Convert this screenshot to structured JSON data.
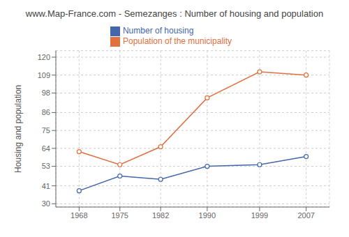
{
  "chart_data": {
    "type": "line",
    "title": "www.Map-France.com - Semezanges : Number of housing and population",
    "ylabel": "Housing and population",
    "x": [
      1968,
      1975,
      1982,
      1990,
      1999,
      2007
    ],
    "series": [
      {
        "name": "Number of housing",
        "color": "#4466aa",
        "values": [
          38,
          47,
          45,
          53,
          54,
          59
        ],
        "marker": "circle"
      },
      {
        "name": "Population of the municipality",
        "color": "#e07040",
        "values": [
          62,
          54,
          65,
          95,
          111,
          109
        ],
        "marker": "circle"
      }
    ],
    "xlim": [
      1964,
      2011
    ],
    "xticks": [
      1968,
      1975,
      1982,
      1990,
      1999,
      2007
    ],
    "ylim": [
      28,
      124
    ],
    "yticks": [
      30,
      41,
      53,
      64,
      75,
      86,
      98,
      109,
      120
    ],
    "grid": true,
    "legend": "top"
  }
}
